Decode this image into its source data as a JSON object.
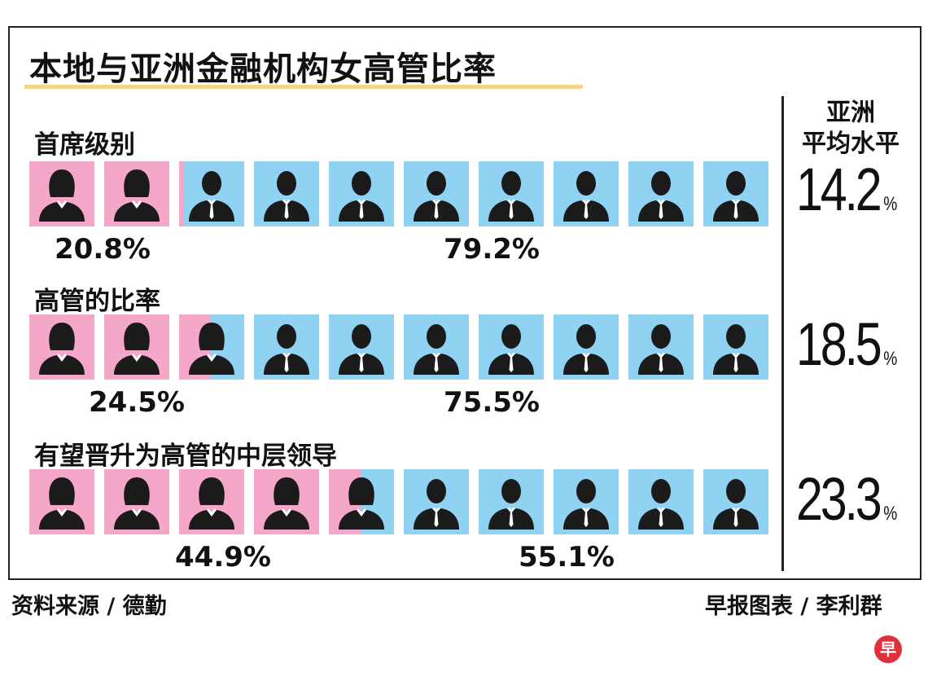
{
  "title": "本地与亚洲金融机构女高管比率",
  "colors": {
    "female": "#f4a7c8",
    "male": "#8fd2f1",
    "silhouette": "#1b1b1b",
    "underline": "#f3d38a"
  },
  "avg_header": {
    "line1": "亚洲",
    "line2": "平均水平"
  },
  "source": "资料来源 / 德勤",
  "credit": "早报图表 / 李利群",
  "logo_char": "早",
  "chart_data": {
    "type": "bar",
    "title": "本地与亚洲金融机构女高管比率",
    "unit": "%",
    "icons_per_row": 10,
    "rows": [
      {
        "label": "首席级别",
        "female": 20.8,
        "male": 79.2,
        "female_text": "20.8%",
        "male_text": "79.2%",
        "asia_avg": 14.2,
        "asia_avg_text": "14.2"
      },
      {
        "label": "高管的比率",
        "female": 24.5,
        "male": 75.5,
        "female_text": "24.5%",
        "male_text": "75.5%",
        "asia_avg": 18.5,
        "asia_avg_text": "18.5"
      },
      {
        "label": "有望晋升为高管的中层领导",
        "female": 44.9,
        "male": 55.1,
        "female_text": "44.9%",
        "male_text": "55.1%",
        "asia_avg": 23.3,
        "asia_avg_text": "23.3"
      }
    ],
    "avg_unit": "%"
  }
}
